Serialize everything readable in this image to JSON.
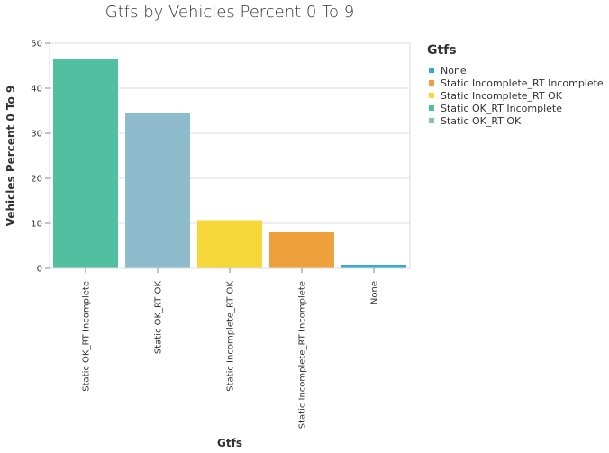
{
  "chart_data": {
    "type": "bar",
    "title": "Gtfs by Vehicles Percent 0 To 9",
    "xlabel": "Gtfs",
    "ylabel": "Vehicles Percent 0 To 9",
    "ylim": [
      0,
      50
    ],
    "yticks": [
      0,
      10,
      20,
      30,
      40,
      50
    ],
    "grid": true,
    "categories": [
      "Static OK_RT Incomplete",
      "Static OK_RT OK",
      "Static Incomplete_RT OK",
      "Static Incomplete_RT Incomplete",
      "None"
    ],
    "values": [
      46.5,
      34.6,
      10.7,
      8.0,
      0.8
    ],
    "bar_colors": [
      "#52c0a0",
      "#8fbccc",
      "#f5d737",
      "#eda03c",
      "#38aacb"
    ],
    "legend": {
      "title": "Gtfs",
      "placement": "right",
      "items": [
        {
          "label": "None",
          "color": "#38aacb"
        },
        {
          "label": "Static Incomplete_RT Incomplete",
          "color": "#eda03c"
        },
        {
          "label": "Static Incomplete_RT OK",
          "color": "#f5d737"
        },
        {
          "label": "Static OK_RT Incomplete",
          "color": "#52c0a0"
        },
        {
          "label": "Static OK_RT OK",
          "color": "#8fbccc"
        }
      ]
    }
  }
}
